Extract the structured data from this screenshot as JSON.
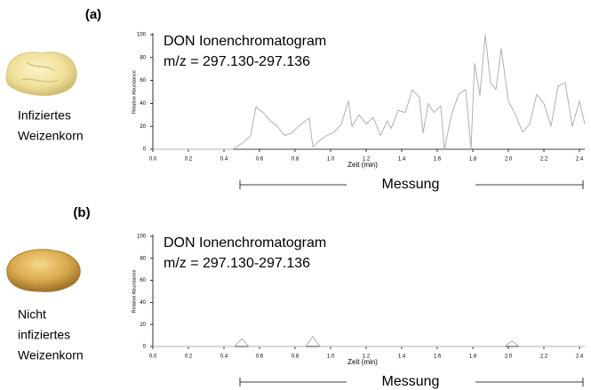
{
  "chart_data": [
    {
      "type": "line",
      "panel_label": "(a)",
      "image_caption": [
        "Infiziertes",
        "Weizenkorn"
      ],
      "title": "DON Ionenchromatogram",
      "subtitle": "m/z = 297.130-297.136",
      "ylabel": "Relative Abundance",
      "xlabel": "Zeit (min)",
      "annotation": "Messung",
      "color": "#b0b0b0",
      "x": [
        0,
        0.45,
        0.5,
        0.55,
        0.58,
        0.62,
        0.66,
        0.7,
        0.74,
        0.78,
        0.82,
        0.86,
        0.88,
        0.9,
        0.94,
        0.98,
        1.02,
        1.06,
        1.1,
        1.12,
        1.16,
        1.2,
        1.24,
        1.28,
        1.32,
        1.34,
        1.38,
        1.42,
        1.46,
        1.5,
        1.52,
        1.55,
        1.58,
        1.62,
        1.64,
        1.68,
        1.72,
        1.76,
        1.79,
        1.81,
        1.84,
        1.87,
        1.9,
        1.93,
        1.96,
        2.0,
        2.04,
        2.08,
        2.12,
        2.16,
        2.2,
        2.24,
        2.28,
        2.32,
        2.36,
        2.4,
        2.43
      ],
      "values": [
        0,
        0,
        5,
        12,
        37,
        32,
        25,
        20,
        12,
        14,
        20,
        25,
        27,
        2,
        8,
        12,
        15,
        22,
        42,
        20,
        30,
        22,
        28,
        12,
        25,
        18,
        34,
        32,
        52,
        45,
        14,
        40,
        32,
        38,
        0,
        30,
        48,
        52,
        0,
        75,
        47,
        100,
        58,
        52,
        88,
        42,
        30,
        15,
        22,
        48,
        40,
        20,
        55,
        58,
        20,
        42,
        22
      ],
      "xlim": [
        0,
        2.43
      ],
      "ylim": [
        0,
        100
      ],
      "xticks": [
        {
          "value": 0,
          "label": "0.0"
        },
        0.2,
        0.4,
        0.6,
        0.8,
        {
          "value": 1,
          "label": "1.0"
        },
        1.2,
        1.4,
        1.6,
        1.8,
        {
          "value": 2,
          "label": "2.0"
        },
        2.2,
        2.4
      ],
      "yticks": [
        0,
        20,
        40,
        60,
        80,
        100
      ]
    },
    {
      "type": "line",
      "panel_label": "(b)",
      "image_caption": [
        "Nicht",
        "infiziertes",
        "Weizenkorn"
      ],
      "title": "DON Ionenchromatogram",
      "subtitle": "m/z = 297.130-297.136",
      "ylabel": "Relative Abundance",
      "xlabel": "Zeit (min)",
      "annotation": "Messung",
      "color": "#b0b0b0",
      "x": [
        0,
        0.46,
        0.5,
        0.54,
        0.86,
        0.9,
        0.94,
        1.98,
        2.02,
        2.06,
        2.43
      ],
      "values": [
        0,
        0,
        7,
        0,
        0,
        9,
        0,
        0,
        5,
        0,
        0
      ],
      "xlim": [
        0,
        2.43
      ],
      "ylim": [
        0,
        100
      ],
      "xticks": [
        {
          "value": 0,
          "label": "0.0"
        },
        0.2,
        0.4,
        0.6,
        0.8,
        {
          "value": 1,
          "label": "1.0"
        },
        1.2,
        1.4,
        1.6,
        1.8,
        {
          "value": 2,
          "label": "2.0"
        },
        2.2,
        2.4
      ],
      "yticks": [
        0,
        20,
        40,
        60,
        80,
        100
      ]
    }
  ]
}
